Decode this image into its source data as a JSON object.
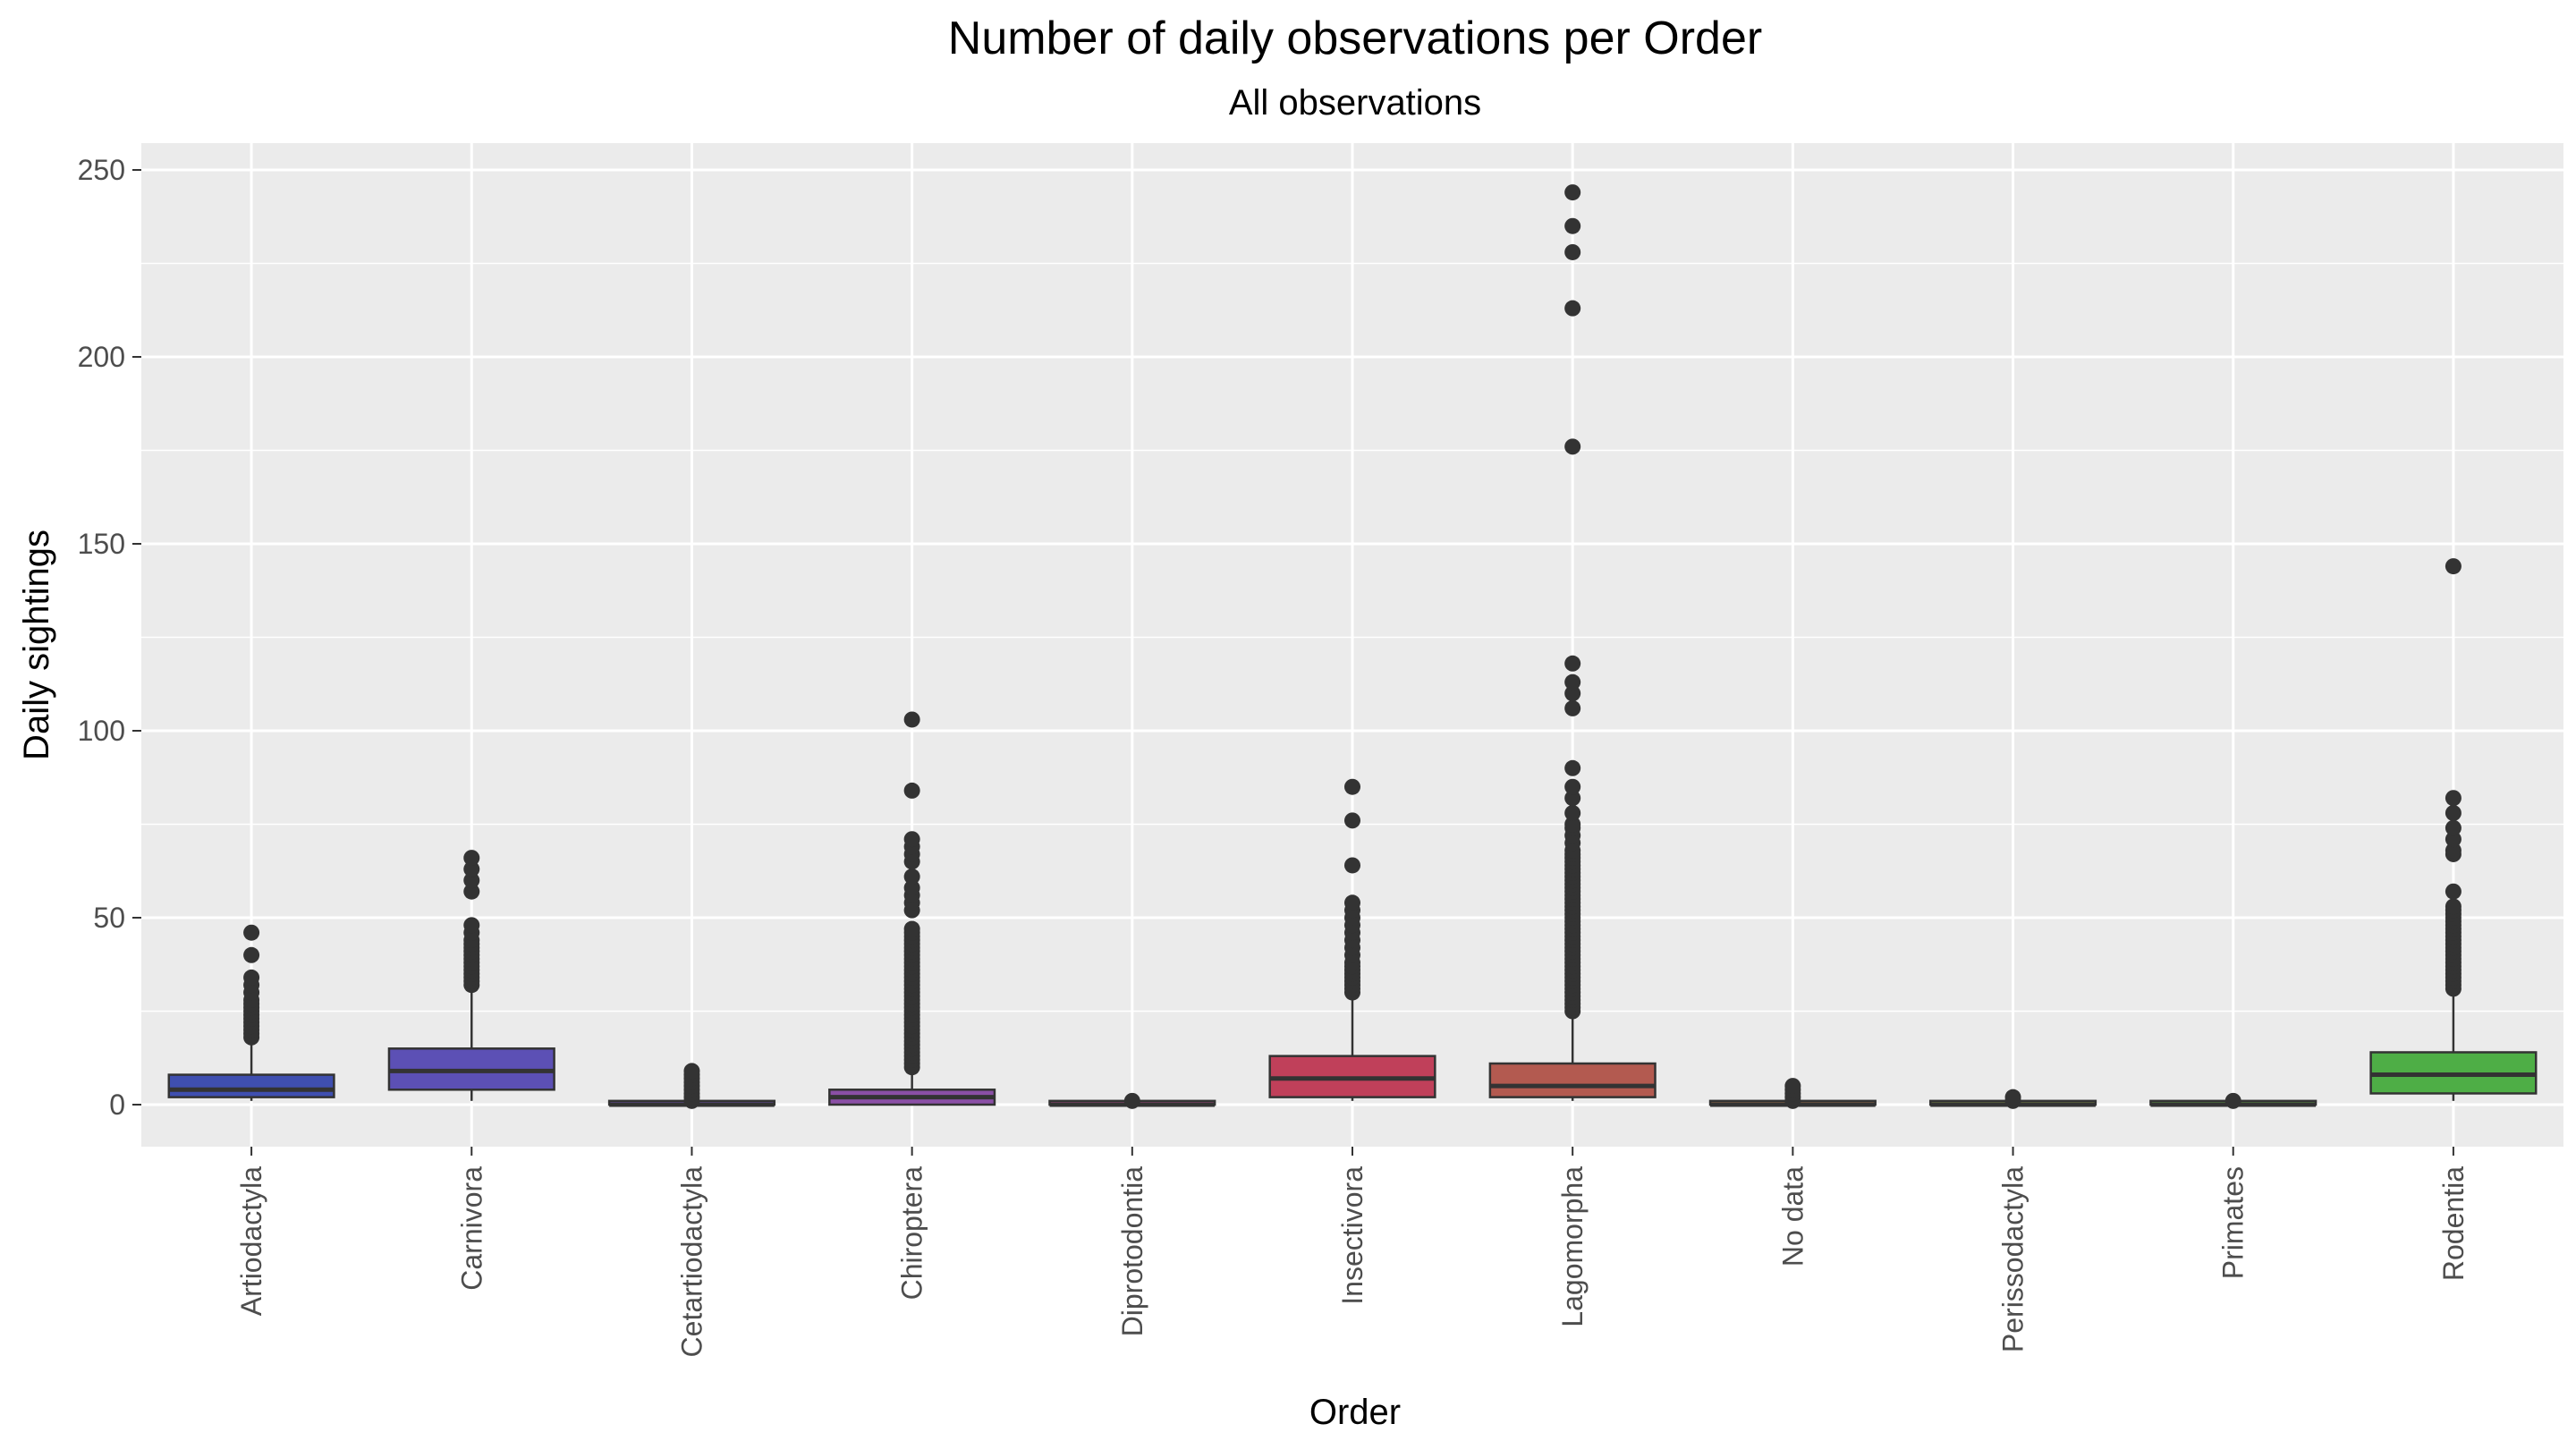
{
  "chart_data": {
    "type": "box",
    "title": "Number of daily observations per Order",
    "subtitle": "All observations",
    "xlabel": "Order",
    "ylabel": "Daily sightings",
    "ylim": [
      -12,
      255
    ],
    "yticks": [
      0,
      50,
      100,
      150,
      200,
      250
    ],
    "grid": true,
    "categories": [
      "Artiodactyla",
      "Carnivora",
      "Cetartiodactyla",
      "Chiroptera",
      "Diprotodontia",
      "Insectivora",
      "Lagomorpha",
      "No data",
      "Perissodactyla",
      "Primates",
      "Rodentia"
    ],
    "boxes": [
      {
        "category": "Artiodactyla",
        "color": "#3f4fb0",
        "q1": 2,
        "median": 4,
        "q3": 8,
        "whisker_low": 1,
        "whisker_high": 17,
        "outliers": [
          18,
          19,
          20,
          21,
          22,
          23,
          24,
          25,
          26,
          27,
          28,
          30,
          32,
          34,
          40,
          46
        ]
      },
      {
        "category": "Carnivora",
        "color": "#5c50b5",
        "q1": 4,
        "median": 9,
        "q3": 15,
        "whisker_low": 1,
        "whisker_high": 31,
        "outliers": [
          32,
          33,
          34,
          35,
          36,
          37,
          38,
          39,
          40,
          41,
          42,
          43,
          44,
          46,
          48,
          57,
          60,
          63,
          66
        ]
      },
      {
        "category": "Cetartiodactyla",
        "color": "#6e4fae",
        "q1": 0,
        "median": 0,
        "q3": 1,
        "whisker_low": 0,
        "whisker_high": 1,
        "outliers": [
          1,
          2,
          3,
          4,
          5,
          6,
          7,
          8,
          9
        ]
      },
      {
        "category": "Chiroptera",
        "color": "#8a4fa5",
        "q1": 0,
        "median": 2,
        "q3": 4,
        "whisker_low": 0,
        "whisker_high": 9,
        "outliers": [
          10,
          11,
          12,
          13,
          14,
          15,
          16,
          17,
          18,
          19,
          20,
          21,
          22,
          23,
          24,
          25,
          26,
          27,
          28,
          29,
          30,
          31,
          32,
          33,
          34,
          35,
          36,
          37,
          38,
          39,
          40,
          41,
          42,
          43,
          44,
          45,
          46,
          47,
          52,
          54,
          56,
          58,
          61,
          65,
          67,
          69,
          71,
          84,
          103
        ]
      },
      {
        "category": "Diprotodontia",
        "color": "#a4467f",
        "q1": 0,
        "median": 0,
        "q3": 1,
        "whisker_low": 0,
        "whisker_high": 1,
        "outliers": [
          1
        ]
      },
      {
        "category": "Insectivora",
        "color": "#c0405a",
        "q1": 2,
        "median": 7,
        "q3": 13,
        "whisker_low": 1,
        "whisker_high": 29,
        "outliers": [
          30,
          31,
          32,
          33,
          34,
          35,
          36,
          37,
          38,
          40,
          42,
          44,
          46,
          48,
          50,
          52,
          54,
          64,
          76,
          85
        ]
      },
      {
        "category": "Lagomorpha",
        "color": "#b35a50",
        "q1": 2,
        "median": 5,
        "q3": 11,
        "whisker_low": 1,
        "whisker_high": 24,
        "outliers": [
          25,
          26,
          27,
          28,
          29,
          30,
          31,
          32,
          33,
          34,
          35,
          36,
          37,
          38,
          39,
          40,
          41,
          42,
          43,
          44,
          45,
          46,
          47,
          48,
          49,
          50,
          51,
          52,
          53,
          54,
          55,
          56,
          57,
          58,
          59,
          60,
          61,
          62,
          63,
          64,
          65,
          66,
          67,
          68,
          70,
          72,
          74,
          75,
          78,
          82,
          85,
          90,
          106,
          110,
          113,
          118,
          176,
          213,
          228,
          235,
          244
        ]
      },
      {
        "category": "No data",
        "color": "#9a6e48",
        "q1": 0,
        "median": 0,
        "q3": 1,
        "whisker_low": 0,
        "whisker_high": 1,
        "outliers": [
          1,
          2,
          3,
          4,
          5
        ]
      },
      {
        "category": "Perissodactyla",
        "color": "#7c8a45",
        "q1": 0,
        "median": 0,
        "q3": 1,
        "whisker_low": 0,
        "whisker_high": 1,
        "outliers": [
          1,
          2
        ]
      },
      {
        "category": "Primates",
        "color": "#5d9a43",
        "q1": 0,
        "median": 0,
        "q3": 1,
        "whisker_low": 0,
        "whisker_high": 1,
        "outliers": [
          1
        ]
      },
      {
        "category": "Rodentia",
        "color": "#4eae46",
        "q1": 3,
        "median": 8,
        "q3": 14,
        "whisker_low": 1,
        "whisker_high": 30,
        "outliers": [
          31,
          32,
          33,
          34,
          35,
          36,
          37,
          38,
          39,
          40,
          41,
          42,
          43,
          44,
          45,
          46,
          47,
          48,
          49,
          50,
          51,
          52,
          53,
          57,
          67,
          68,
          71,
          74,
          78,
          82,
          144
        ]
      }
    ]
  }
}
